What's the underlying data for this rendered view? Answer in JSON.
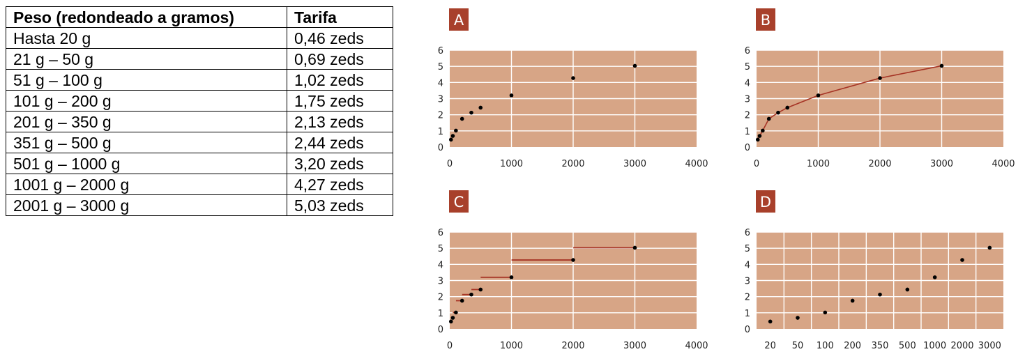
{
  "table": {
    "headers": [
      "Peso (redondeado a gramos)",
      "Tarifa"
    ],
    "rows": [
      [
        "Hasta 20 g",
        "0,46 zeds"
      ],
      [
        "21 g – 50 g",
        "0,69 zeds"
      ],
      [
        "51 g – 100 g",
        "1,02 zeds"
      ],
      [
        "101 g – 200 g",
        "1,75 zeds"
      ],
      [
        "201 g – 350 g",
        "2,13 zeds"
      ],
      [
        "351 g – 500 g",
        "2,44 zeds"
      ],
      [
        "501 g – 1000 g",
        "3,20 zeds"
      ],
      [
        "1001 g – 2000 g",
        "4,27 zeds"
      ],
      [
        "2001 g – 3000 g",
        "5,03 zeds"
      ]
    ]
  },
  "colors": {
    "plot_bg": "#d7a586",
    "grid": "#ffffff",
    "badge": "#a8402b",
    "line": "#a63425",
    "point": "#000000"
  },
  "chart_data": [
    {
      "id": "A",
      "type": "scatter",
      "title": "A",
      "xlim": [
        0,
        4000
      ],
      "ylim": [
        0,
        6
      ],
      "xticks": [
        0,
        1000,
        2000,
        3000,
        4000
      ],
      "yticks": [
        0,
        1,
        2,
        3,
        4,
        5,
        6
      ],
      "x": [
        20,
        50,
        100,
        200,
        350,
        500,
        1000,
        2000,
        3000
      ],
      "y": [
        0.46,
        0.69,
        1.02,
        1.75,
        2.13,
        2.44,
        3.2,
        4.27,
        5.03
      ]
    },
    {
      "id": "B",
      "type": "line",
      "title": "B",
      "xlim": [
        0,
        4000
      ],
      "ylim": [
        0,
        6
      ],
      "xticks": [
        0,
        1000,
        2000,
        3000,
        4000
      ],
      "yticks": [
        0,
        1,
        2,
        3,
        4,
        5,
        6
      ],
      "x": [
        20,
        50,
        100,
        200,
        350,
        500,
        1000,
        2000,
        3000
      ],
      "y": [
        0.46,
        0.69,
        1.02,
        1.75,
        2.13,
        2.44,
        3.2,
        4.27,
        5.03
      ]
    },
    {
      "id": "C",
      "type": "step",
      "title": "C",
      "xlim": [
        0,
        4000
      ],
      "ylim": [
        0,
        6
      ],
      "xticks": [
        0,
        1000,
        2000,
        3000,
        4000
      ],
      "yticks": [
        0,
        1,
        2,
        3,
        4,
        5,
        6
      ],
      "x": [
        20,
        50,
        100,
        200,
        350,
        500,
        1000,
        2000,
        3000
      ],
      "y": [
        0.46,
        0.69,
        1.02,
        1.75,
        2.13,
        2.44,
        3.2,
        4.27,
        5.03
      ],
      "steps": [
        {
          "x": [
            0,
            20
          ],
          "y": 0.46
        },
        {
          "x": [
            21,
            50
          ],
          "y": 0.69
        },
        {
          "x": [
            51,
            100
          ],
          "y": 1.02
        },
        {
          "x": [
            101,
            200
          ],
          "y": 1.75
        },
        {
          "x": [
            201,
            350
          ],
          "y": 2.13
        },
        {
          "x": [
            351,
            500
          ],
          "y": 2.44
        },
        {
          "x": [
            501,
            1000
          ],
          "y": 3.2
        },
        {
          "x": [
            1001,
            2000
          ],
          "y": 4.27
        },
        {
          "x": [
            2001,
            3000
          ],
          "y": 5.03
        }
      ]
    },
    {
      "id": "D",
      "type": "scatter",
      "title": "D",
      "ylim": [
        0,
        6
      ],
      "yticks": [
        0,
        1,
        2,
        3,
        4,
        5,
        6
      ],
      "categories": [
        "20",
        "50",
        "100",
        "200",
        "350",
        "500",
        "1000",
        "2000",
        "3000"
      ],
      "y": [
        0.46,
        0.69,
        1.02,
        1.75,
        2.13,
        2.44,
        3.2,
        4.27,
        5.03
      ]
    }
  ]
}
